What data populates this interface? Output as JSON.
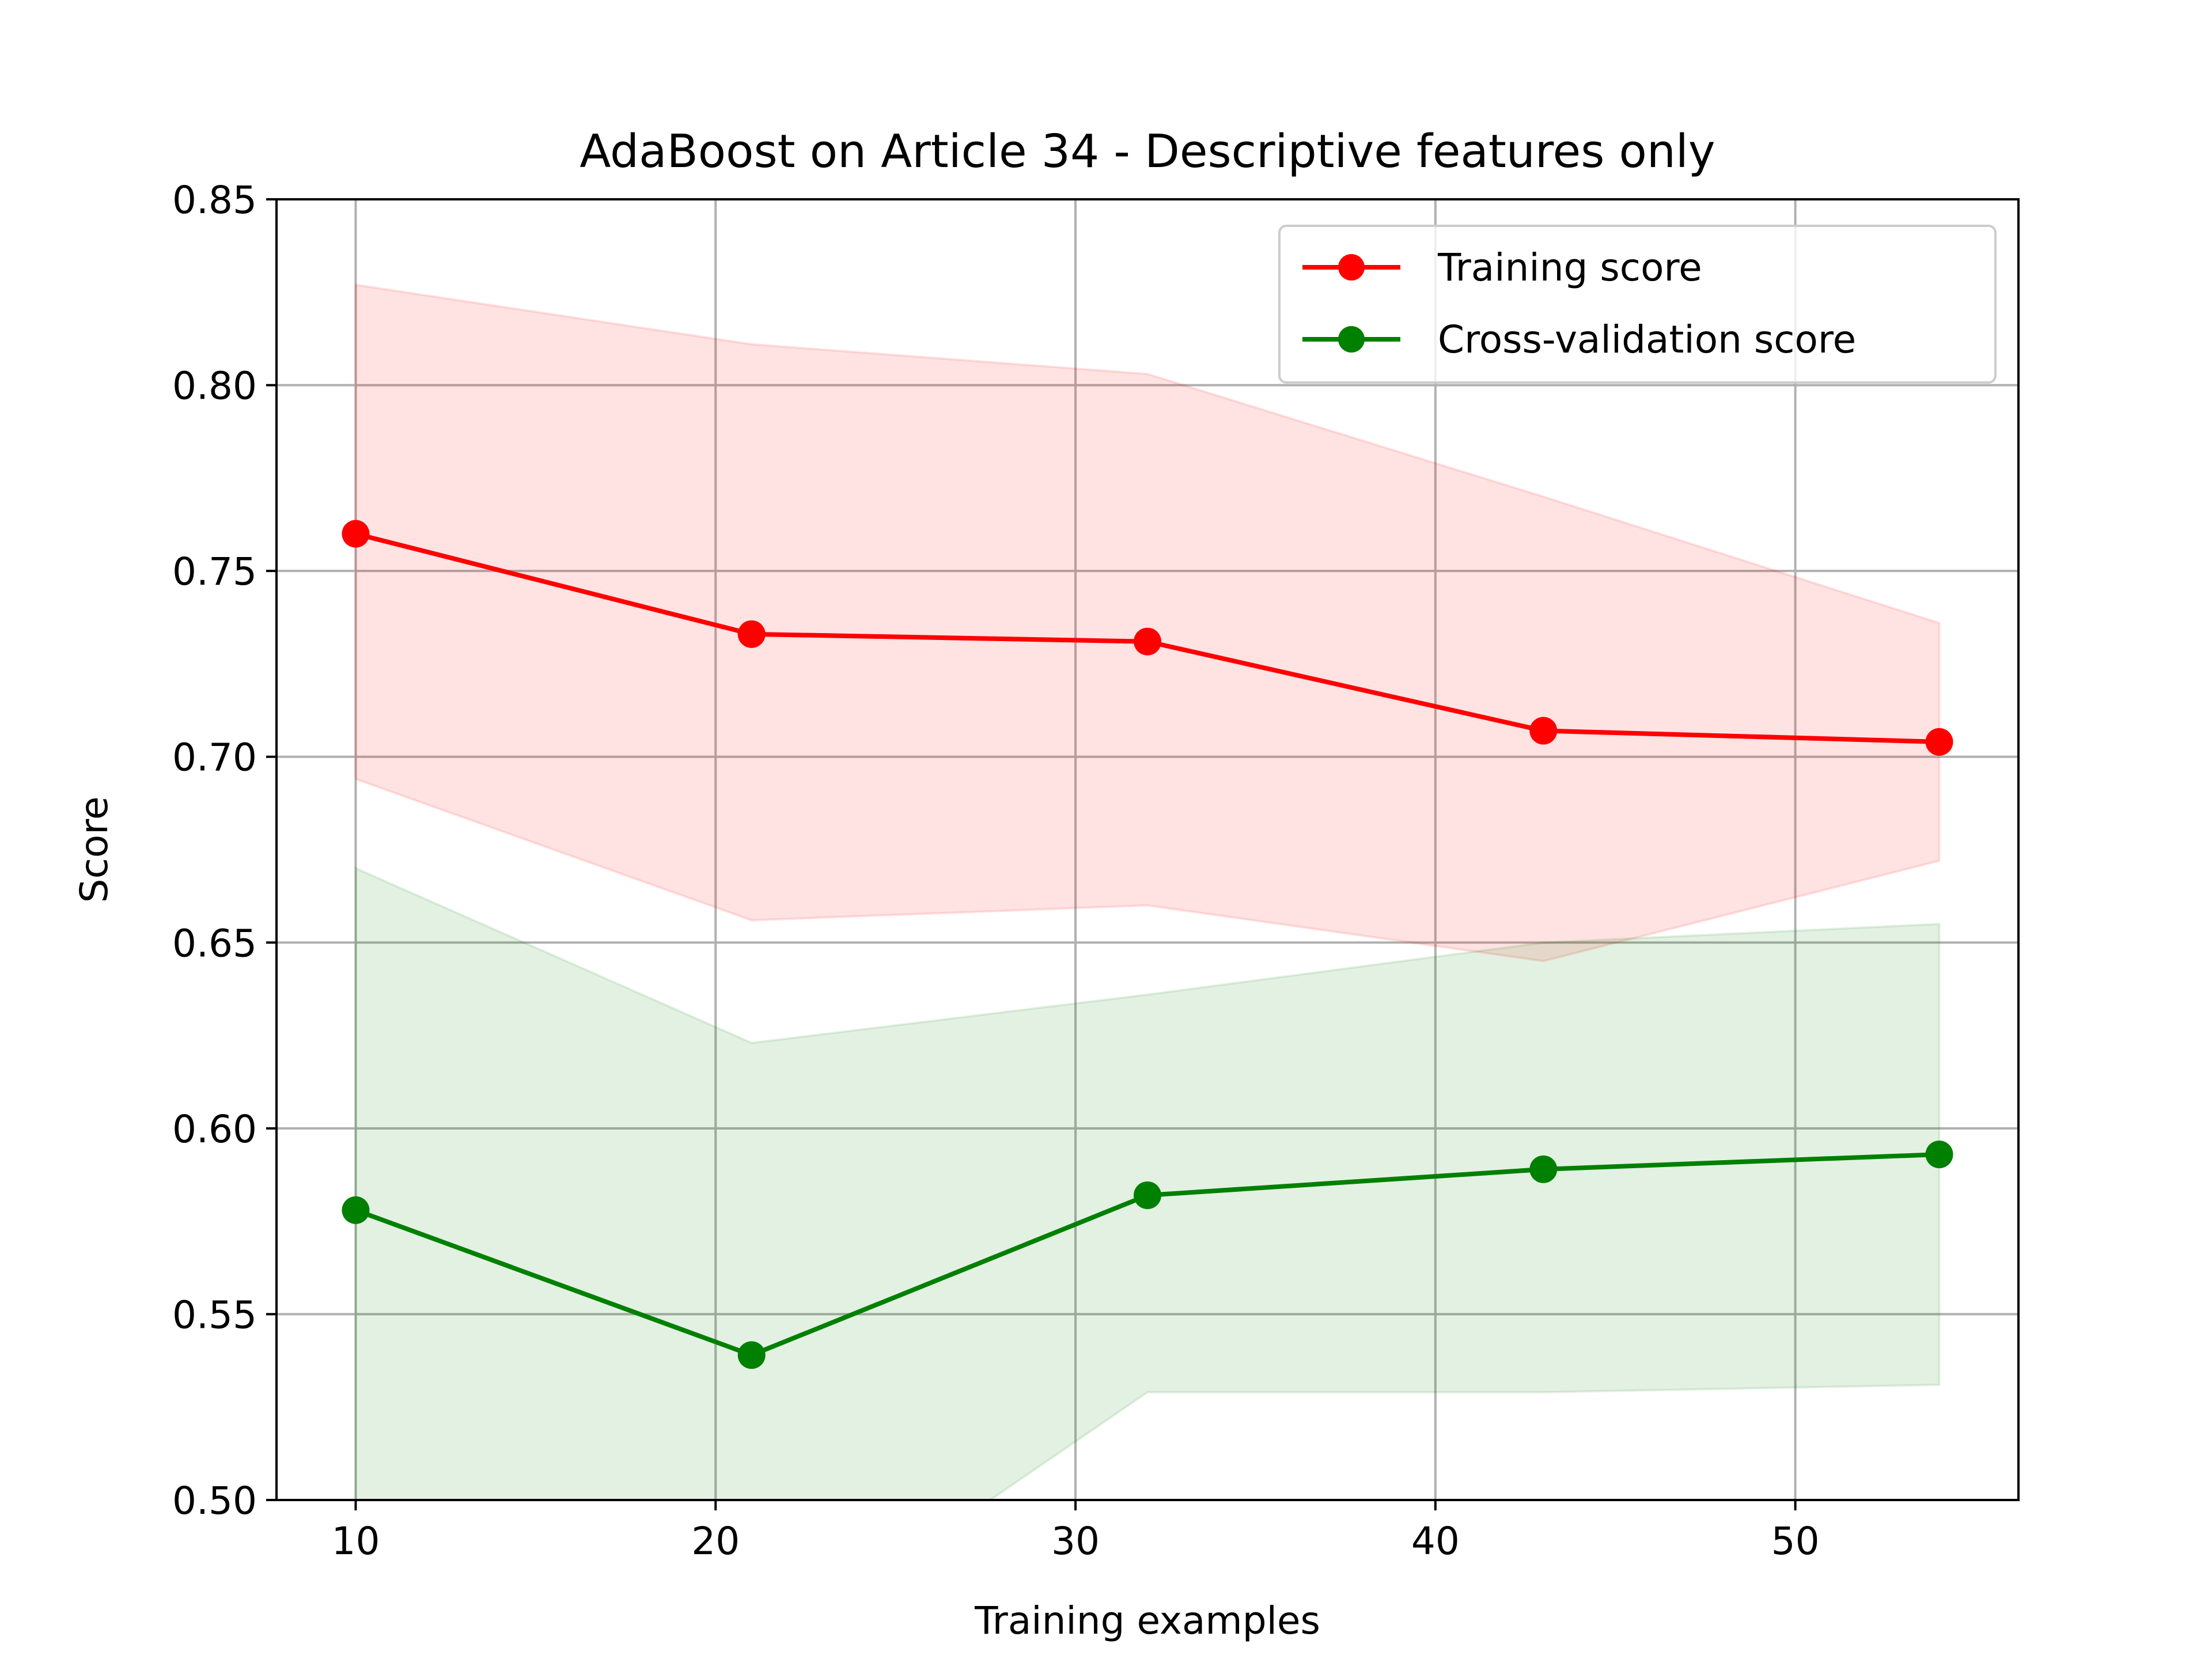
{
  "chart_data": {
    "type": "line",
    "title": "AdaBoost on Article 34 - Descriptive features only",
    "xlabel": "Training examples",
    "ylabel": "Score",
    "xlim": [
      7.8,
      56.2
    ],
    "ylim": [
      0.5,
      0.85
    ],
    "xticks": [
      10,
      20,
      30,
      40,
      50
    ],
    "xtick_labels": [
      "10",
      "20",
      "30",
      "40",
      "50"
    ],
    "yticks": [
      0.5,
      0.55,
      0.6,
      0.65,
      0.7,
      0.75,
      0.8,
      0.85
    ],
    "ytick_labels": [
      "0.50",
      "0.55",
      "0.60",
      "0.65",
      "0.70",
      "0.75",
      "0.80",
      "0.85"
    ],
    "grid": true,
    "legend_position": "top-right",
    "x": [
      10,
      21,
      32,
      43,
      54
    ],
    "series": [
      {
        "name": "Training score",
        "color": "#ff0000",
        "values": [
          0.76,
          0.733,
          0.731,
          0.707,
          0.704
        ],
        "band_upper": [
          0.827,
          0.811,
          0.803,
          0.77,
          0.736
        ],
        "band_lower": [
          0.694,
          0.656,
          0.66,
          0.645,
          0.672
        ]
      },
      {
        "name": "Cross-validation score",
        "color": "#008000",
        "values": [
          0.578,
          0.539,
          0.582,
          0.589,
          0.593
        ],
        "band_upper": [
          0.67,
          0.623,
          0.636,
          0.65,
          0.655
        ],
        "band_lower": [
          0.487,
          0.456,
          0.529,
          0.529,
          0.531
        ]
      }
    ]
  }
}
